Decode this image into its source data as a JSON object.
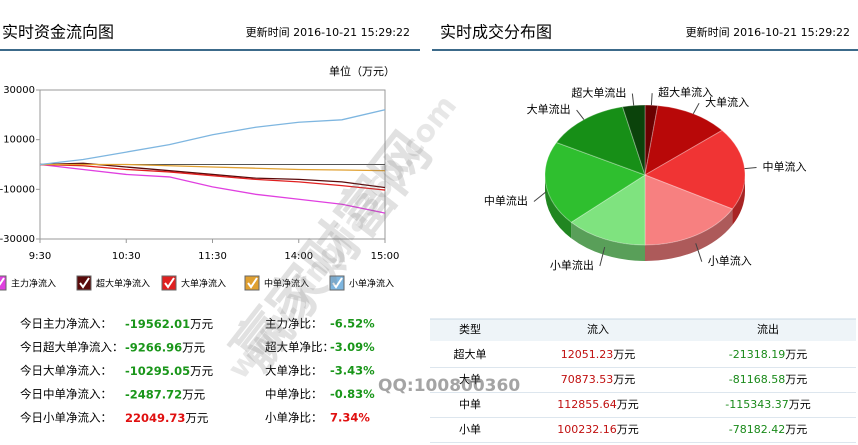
{
  "header_left": {
    "title": "实时资金流向图",
    "update": "更新时间 2016-10-21 15:29:22"
  },
  "header_right": {
    "title": "实时成交分布图",
    "update": "更新时间 2016-10-21 15:29:22"
  },
  "chart_data": [
    {
      "type": "line",
      "unit_label": "单位（万元）",
      "categories": [
        "9:30",
        null,
        "10:30",
        null,
        "11:30",
        null,
        "14:00",
        null,
        "15:00"
      ],
      "ylim": [
        -30000,
        30000
      ],
      "yticks": [
        30000,
        10000,
        -10000,
        -30000
      ],
      "series": [
        {
          "name": "主力净流入",
          "color": "#e040e0",
          "values": [
            0,
            -2000,
            -4000,
            -5000,
            -9000,
            -12000,
            -14000,
            -16000,
            -19562
          ]
        },
        {
          "name": "超大单净流入",
          "color": "#5a0a0a",
          "values": [
            0,
            500,
            -1000,
            -2500,
            -4000,
            -5500,
            -6000,
            -7000,
            -9267
          ]
        },
        {
          "name": "大单净流入",
          "color": "#e02020",
          "values": [
            0,
            -500,
            -2000,
            -3000,
            -4500,
            -6000,
            -7000,
            -8500,
            -10295
          ]
        },
        {
          "name": "中单净流入",
          "color": "#e0a030",
          "values": [
            0,
            0,
            0,
            -500,
            -1000,
            -1500,
            -2000,
            -2200,
            -2488
          ]
        },
        {
          "name": "小单净流入",
          "color": "#7eb6e0",
          "values": [
            0,
            2000,
            5000,
            8000,
            12000,
            15000,
            17000,
            18000,
            22050
          ]
        }
      ]
    },
    {
      "type": "pie",
      "categories": [
        "超大单流入",
        "大单流入",
        "中单流入",
        "小单流入",
        "小单流出",
        "中单流出",
        "大单流出",
        "超大单流出"
      ],
      "values": [
        12051.23,
        70873.53,
        112855.64,
        100232.16,
        78182.42,
        115343.37,
        81168.58,
        21318.19
      ],
      "colors": [
        "#6a0000",
        "#b80808",
        "#f03434",
        "#f78080",
        "#7fe37f",
        "#2fbf2f",
        "#178f17",
        "#0b430b"
      ]
    }
  ],
  "stats": [
    {
      "label": "今日主力净流入：",
      "value": "-19562.01",
      "ratio_label": "主力净比：",
      "ratio": "-6.52%"
    },
    {
      "label": "今日超大单净流入：",
      "value": "-9266.96",
      "ratio_label": "超大单净比：",
      "ratio": "-3.09%"
    },
    {
      "label": "今日大单净流入：",
      "value": "-10295.05",
      "ratio_label": "大单净比：",
      "ratio": "-3.43%"
    },
    {
      "label": "今日中单净流入：",
      "value": "-2487.72",
      "ratio_label": "中单净比：",
      "ratio": "-0.83%"
    },
    {
      "label": "今日小单净流入：",
      "value": "22049.73",
      "ratio_label": "小单净比：",
      "ratio": "7.34%"
    }
  ],
  "unit": "万元",
  "table": {
    "header": [
      "类型",
      "流入",
      "流出"
    ],
    "rows": [
      [
        "超大单",
        "12051.23",
        "-21318.19"
      ],
      [
        "大单",
        "70873.53",
        "-81168.58"
      ],
      [
        "中单",
        "112855.64",
        "-115343.37"
      ],
      [
        "小单",
        "100232.16",
        "-78182.42"
      ]
    ]
  },
  "watermark": {
    "site": "赢家财富网",
    "url": "www.yingjia360.com",
    "qq": "QQ:100800360"
  }
}
